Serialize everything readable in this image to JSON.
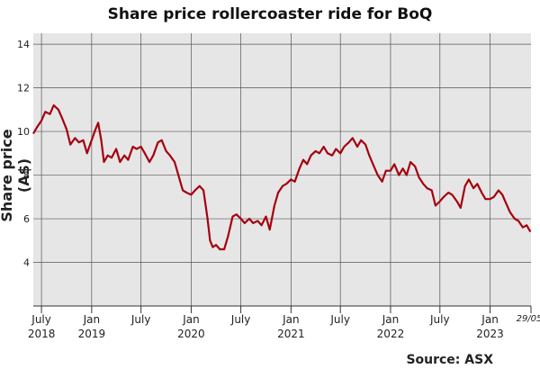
{
  "chart_data": {
    "type": "line",
    "title": "Share price rollercoaster ride for BoQ",
    "ylabel": "Share price (A$)",
    "xlabel": "",
    "source": "Source: ASX",
    "ylim": [
      2,
      14.5
    ],
    "yticks": [
      4,
      6,
      8,
      10,
      12,
      14
    ],
    "xlim": [
      "2018-06-01",
      "2023-05-31"
    ],
    "grid": true,
    "colors": {
      "line": "#a5000e",
      "plot_bg": "#e6e6e6",
      "grid": "#555555"
    },
    "xticks": [
      {
        "date": "2018-07-01",
        "label": "July",
        "year": "2018"
      },
      {
        "date": "2019-01-01",
        "label": "Jan",
        "year": "2019"
      },
      {
        "date": "2019-07-01",
        "label": "July",
        "year": ""
      },
      {
        "date": "2020-01-01",
        "label": "Jan",
        "year": "2020"
      },
      {
        "date": "2020-07-01",
        "label": "July",
        "year": ""
      },
      {
        "date": "2021-01-01",
        "label": "Jan",
        "year": "2021"
      },
      {
        "date": "2021-07-01",
        "label": "July",
        "year": ""
      },
      {
        "date": "2022-01-01",
        "label": "Jan",
        "year": "2022"
      },
      {
        "date": "2022-07-01",
        "label": "July",
        "year": ""
      },
      {
        "date": "2023-01-01",
        "label": "Jan",
        "year": "2023"
      }
    ],
    "end_label": "29/05",
    "series": [
      {
        "values": [
          [
            "2018-06-01",
            9.9
          ],
          [
            "2018-06-15",
            10.2
          ],
          [
            "2018-07-01",
            10.5
          ],
          [
            "2018-07-15",
            10.9
          ],
          [
            "2018-08-01",
            10.8
          ],
          [
            "2018-08-15",
            11.2
          ],
          [
            "2018-09-01",
            11.0
          ],
          [
            "2018-09-15",
            10.6
          ],
          [
            "2018-10-01",
            10.1
          ],
          [
            "2018-10-15",
            9.4
          ],
          [
            "2018-11-01",
            9.7
          ],
          [
            "2018-11-15",
            9.5
          ],
          [
            "2018-12-01",
            9.6
          ],
          [
            "2018-12-15",
            9.0
          ],
          [
            "2019-01-01",
            9.6
          ],
          [
            "2019-01-15",
            10.1
          ],
          [
            "2019-01-25",
            10.4
          ],
          [
            "2019-02-05",
            9.6
          ],
          [
            "2019-02-15",
            8.6
          ],
          [
            "2019-03-01",
            8.9
          ],
          [
            "2019-03-15",
            8.8
          ],
          [
            "2019-04-01",
            9.2
          ],
          [
            "2019-04-15",
            8.6
          ],
          [
            "2019-05-01",
            8.9
          ],
          [
            "2019-05-15",
            8.7
          ],
          [
            "2019-06-01",
            9.3
          ],
          [
            "2019-06-15",
            9.2
          ],
          [
            "2019-07-01",
            9.3
          ],
          [
            "2019-07-15",
            9.0
          ],
          [
            "2019-08-01",
            8.6
          ],
          [
            "2019-08-15",
            8.9
          ],
          [
            "2019-09-01",
            9.5
          ],
          [
            "2019-09-15",
            9.6
          ],
          [
            "2019-10-01",
            9.1
          ],
          [
            "2019-10-15",
            8.9
          ],
          [
            "2019-11-01",
            8.6
          ],
          [
            "2019-11-15",
            8.0
          ],
          [
            "2019-12-01",
            7.3
          ],
          [
            "2019-12-15",
            7.2
          ],
          [
            "2020-01-01",
            7.1
          ],
          [
            "2020-01-15",
            7.3
          ],
          [
            "2020-02-01",
            7.5
          ],
          [
            "2020-02-15",
            7.3
          ],
          [
            "2020-03-01",
            6.0
          ],
          [
            "2020-03-10",
            5.0
          ],
          [
            "2020-03-20",
            4.7
          ],
          [
            "2020-04-01",
            4.8
          ],
          [
            "2020-04-15",
            4.6
          ],
          [
            "2020-05-01",
            4.6
          ],
          [
            "2020-05-15",
            5.2
          ],
          [
            "2020-06-01",
            6.1
          ],
          [
            "2020-06-15",
            6.2
          ],
          [
            "2020-07-01",
            6.0
          ],
          [
            "2020-07-15",
            5.8
          ],
          [
            "2020-08-01",
            6.0
          ],
          [
            "2020-08-15",
            5.8
          ],
          [
            "2020-09-01",
            5.9
          ],
          [
            "2020-09-15",
            5.7
          ],
          [
            "2020-10-01",
            6.1
          ],
          [
            "2020-10-15",
            5.5
          ],
          [
            "2020-11-01",
            6.6
          ],
          [
            "2020-11-15",
            7.2
          ],
          [
            "2020-12-01",
            7.5
          ],
          [
            "2020-12-15",
            7.6
          ],
          [
            "2021-01-01",
            7.8
          ],
          [
            "2021-01-15",
            7.7
          ],
          [
            "2021-02-01",
            8.3
          ],
          [
            "2021-02-15",
            8.7
          ],
          [
            "2021-03-01",
            8.5
          ],
          [
            "2021-03-15",
            8.9
          ],
          [
            "2021-04-01",
            9.1
          ],
          [
            "2021-04-15",
            9.0
          ],
          [
            "2021-05-01",
            9.3
          ],
          [
            "2021-05-15",
            9.0
          ],
          [
            "2021-06-01",
            8.9
          ],
          [
            "2021-06-15",
            9.2
          ],
          [
            "2021-07-01",
            9.0
          ],
          [
            "2021-07-15",
            9.3
          ],
          [
            "2021-08-01",
            9.5
          ],
          [
            "2021-08-15",
            9.7
          ],
          [
            "2021-09-01",
            9.3
          ],
          [
            "2021-09-15",
            9.6
          ],
          [
            "2021-10-01",
            9.4
          ],
          [
            "2021-10-15",
            8.9
          ],
          [
            "2021-11-01",
            8.4
          ],
          [
            "2021-11-15",
            8.0
          ],
          [
            "2021-12-01",
            7.7
          ],
          [
            "2021-12-15",
            8.2
          ],
          [
            "2022-01-01",
            8.2
          ],
          [
            "2022-01-15",
            8.5
          ],
          [
            "2022-02-01",
            8.0
          ],
          [
            "2022-02-15",
            8.3
          ],
          [
            "2022-03-01",
            8.0
          ],
          [
            "2022-03-15",
            8.6
          ],
          [
            "2022-04-01",
            8.4
          ],
          [
            "2022-04-15",
            7.9
          ],
          [
            "2022-05-01",
            7.6
          ],
          [
            "2022-05-15",
            7.4
          ],
          [
            "2022-06-01",
            7.3
          ],
          [
            "2022-06-15",
            6.6
          ],
          [
            "2022-07-01",
            6.8
          ],
          [
            "2022-07-15",
            7.0
          ],
          [
            "2022-08-01",
            7.2
          ],
          [
            "2022-08-15",
            7.1
          ],
          [
            "2022-09-01",
            6.8
          ],
          [
            "2022-09-15",
            6.5
          ],
          [
            "2022-10-01",
            7.5
          ],
          [
            "2022-10-15",
            7.8
          ],
          [
            "2022-11-01",
            7.4
          ],
          [
            "2022-11-15",
            7.6
          ],
          [
            "2022-12-01",
            7.2
          ],
          [
            "2022-12-15",
            6.9
          ],
          [
            "2023-01-01",
            6.9
          ],
          [
            "2023-01-15",
            7.0
          ],
          [
            "2023-02-01",
            7.3
          ],
          [
            "2023-02-15",
            7.1
          ],
          [
            "2023-03-01",
            6.7
          ],
          [
            "2023-03-15",
            6.3
          ],
          [
            "2023-04-01",
            6.0
          ],
          [
            "2023-04-15",
            5.9
          ],
          [
            "2023-05-01",
            5.6
          ],
          [
            "2023-05-15",
            5.7
          ],
          [
            "2023-05-29",
            5.4
          ]
        ]
      }
    ]
  }
}
